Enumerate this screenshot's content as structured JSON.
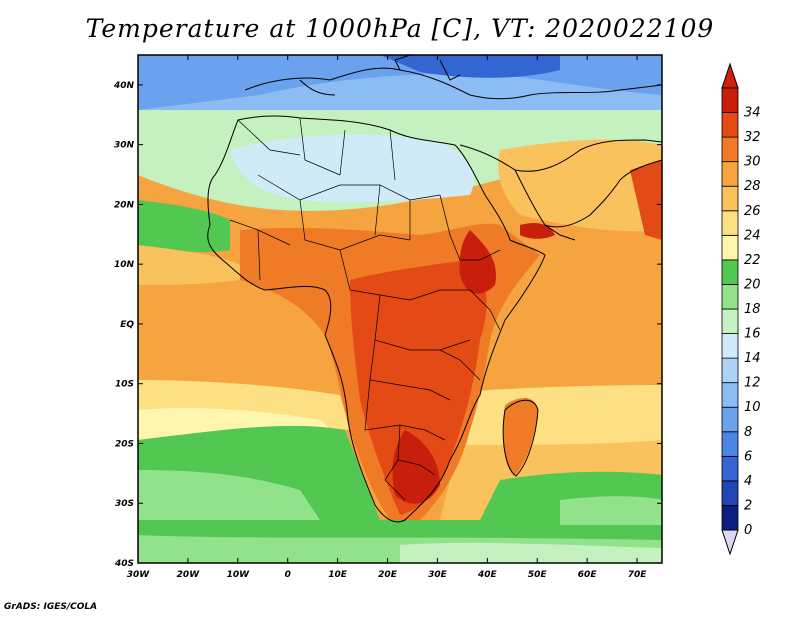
{
  "title": "Temperature at 1000hPa [C], VT: 2020022109",
  "footer": "GrADS: IGES/COLA",
  "map": {
    "lon_range": [
      -30,
      75
    ],
    "lat_range": [
      -40,
      45
    ],
    "lon_ticks": [
      "30W",
      "20W",
      "10W",
      "0",
      "10E",
      "20E",
      "30E",
      "40E",
      "50E",
      "60E",
      "70E"
    ],
    "lat_ticks": [
      "40S",
      "30S",
      "20S",
      "10S",
      "EQ",
      "10N",
      "20N",
      "30N",
      "40N"
    ]
  },
  "colorbar": {
    "labels": [
      "0",
      "2",
      "4",
      "6",
      "8",
      "10",
      "12",
      "14",
      "16",
      "18",
      "20",
      "22",
      "24",
      "26",
      "28",
      "30",
      "32",
      "34"
    ],
    "colors": [
      "#0c1f80",
      "#1f46b4",
      "#3366d2",
      "#4b86e6",
      "#6aa2ee",
      "#8cbcf4",
      "#aed2f7",
      "#d0eaf8",
      "#c5f0c0",
      "#92e28c",
      "#52c752",
      "#fff6ae",
      "#fde084",
      "#f9c25d",
      "#f5a43f",
      "#ef7b27",
      "#e44a15",
      "#c81f0c"
    ],
    "min_color": "#dcd8f4",
    "max_color": "#d2200c"
  }
}
